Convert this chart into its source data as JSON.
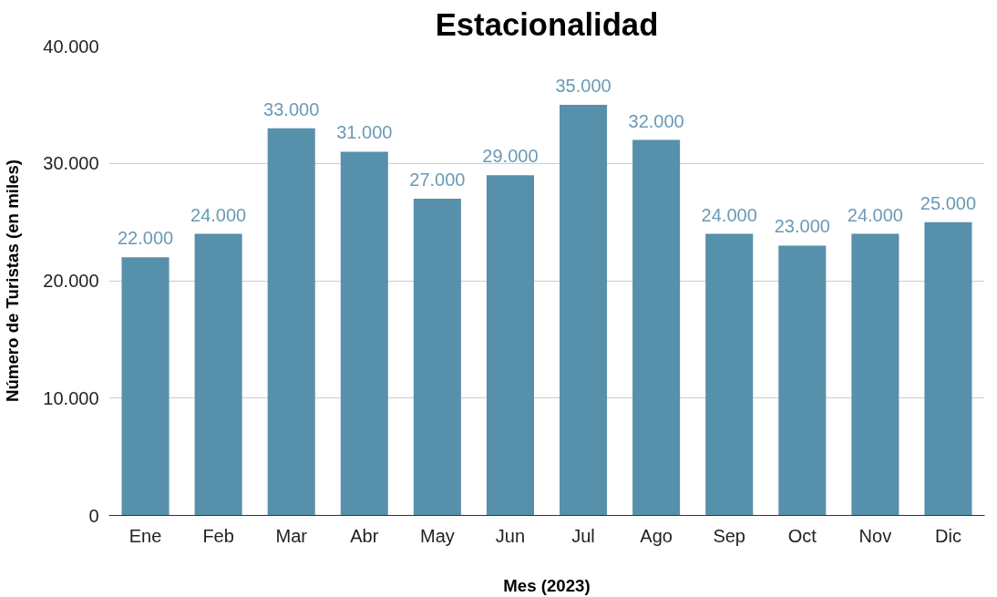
{
  "chart_data": {
    "type": "bar",
    "title": "Estacionalidad",
    "xlabel": "Mes (2023)",
    "ylabel": "Número de Turistas (en miles)",
    "categories": [
      "Ene",
      "Feb",
      "Mar",
      "Abr",
      "May",
      "Jun",
      "Jul",
      "Ago",
      "Sep",
      "Oct",
      "Nov",
      "Dic"
    ],
    "values": [
      22000,
      24000,
      33000,
      31000,
      27000,
      29000,
      35000,
      32000,
      24000,
      23000,
      24000,
      25000
    ],
    "value_labels": [
      "22.000",
      "24.000",
      "33.000",
      "31.000",
      "27.000",
      "29.000",
      "35.000",
      "32.000",
      "24.000",
      "23.000",
      "24.000",
      "25.000"
    ],
    "color": "#5790ab",
    "ylim": [
      0,
      40000
    ],
    "yticks": [
      0,
      {
        "value": 10000,
        "label": "10.000"
      },
      {
        "value": 20000,
        "label": "20.000"
      },
      {
        "value": 30000,
        "label": "30.000"
      },
      {
        "value": 40000,
        "label": "40.000"
      }
    ],
    "grid": "y"
  }
}
